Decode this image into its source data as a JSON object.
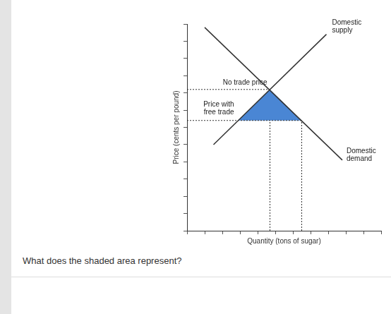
{
  "chart_data": {
    "type": "line",
    "x_label": "Quantity (tons of sugar)",
    "y_label": "Price (cents per pound)",
    "xlim": [
      0,
      11
    ],
    "xticks": [
      0,
      1,
      2,
      3,
      4,
      5,
      6,
      7,
      8,
      9,
      10,
      11
    ],
    "ylim": [
      0,
      12
    ],
    "yticks": [
      0,
      1,
      2,
      3,
      4,
      5,
      6,
      7,
      8,
      9,
      10,
      11,
      12
    ],
    "tick_labels": false,
    "grid": false,
    "series": [
      {
        "name": "Domestic supply",
        "color": "#333333",
        "x": [
          1.5,
          7.9
        ],
        "values": [
          5.0,
          11.4
        ]
      },
      {
        "name": "Domestic demand",
        "color": "#333333",
        "x": [
          1.0,
          8.8
        ],
        "values": [
          11.8,
          4.1
        ]
      }
    ],
    "no_trade_price": 8.2,
    "no_trade_price_label": "No trade price",
    "free_trade_price": 6.4,
    "free_trade_price_label": "Price with free trade",
    "shaded_area": {
      "color": "#4a86d4",
      "x": [
        4.7,
        2.9,
        6.5
      ],
      "values": [
        8.2,
        6.4,
        6.4
      ]
    },
    "dashed_quantities": [
      4.7,
      6.5
    ]
  },
  "question": "What does the shaded area represent?"
}
